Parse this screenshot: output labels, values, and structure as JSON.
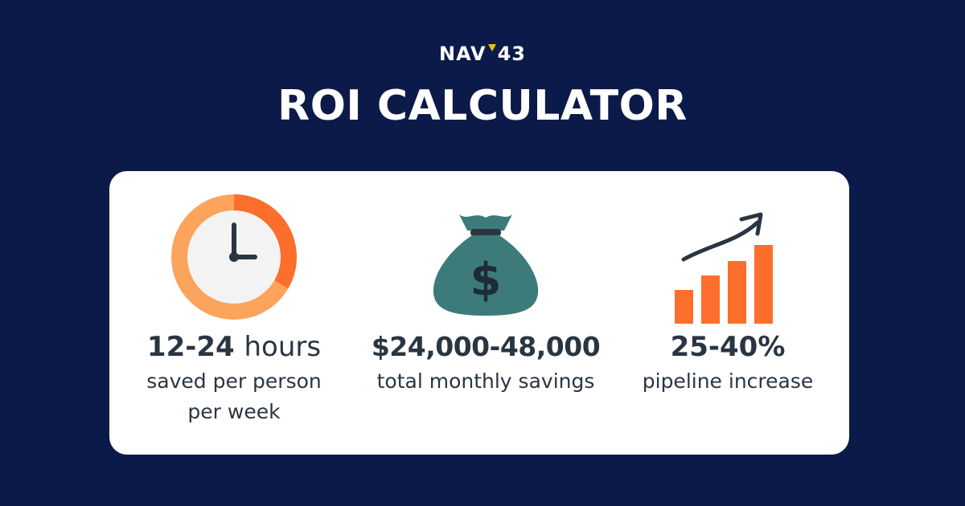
{
  "brand": {
    "logo_left": "NAV",
    "logo_right": "43",
    "mark_color": "#f2c200"
  },
  "title": "ROI CALCULATOR",
  "colors": {
    "background": "#0b1a48",
    "card": "#ffffff",
    "text": "#2a3542",
    "orange": "#fb6e2c",
    "orange_light": "#fca35c",
    "money_bag": "#3d7b7a"
  },
  "stats": [
    {
      "icon": "clock-icon",
      "value_main": "12-24",
      "value_unit": "hours",
      "desc_line1": "saved per person",
      "desc_line2": "per week"
    },
    {
      "icon": "money-bag-icon",
      "value_main": "$24,000-48,000",
      "desc_line1": "total monthly savings"
    },
    {
      "icon": "growth-chart-icon",
      "value_main": "25-40%",
      "desc_line1": "pipeline increase"
    }
  ]
}
